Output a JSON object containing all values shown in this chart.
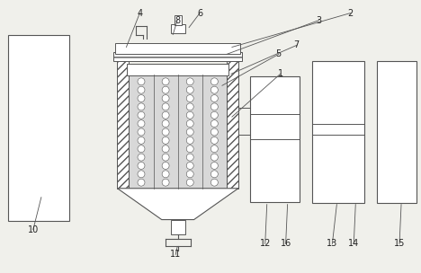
{
  "bg_color": "#f0f0eb",
  "line_color": "#555555",
  "fig_width": 4.68,
  "fig_height": 3.04,
  "dpi": 100
}
